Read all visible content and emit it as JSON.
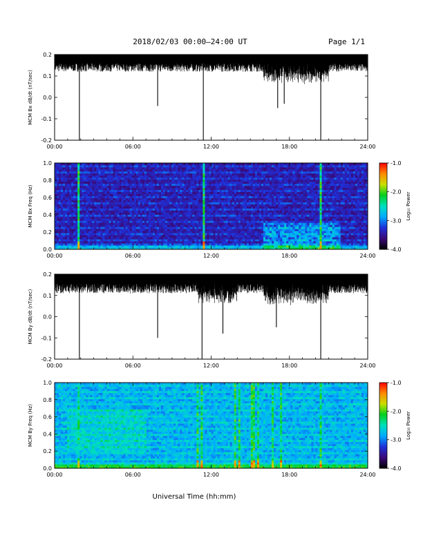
{
  "header": {
    "title": "2018/02/03  00:00–24:00 UT",
    "page": "Page 1/1"
  },
  "footer": {
    "xlabel": "Universal Time (hh:mm)"
  },
  "colors": {
    "trace": "#000000",
    "colorbar_stops": [
      "#000000",
      "#3a0a78",
      "#1f2fd8",
      "#00aaff",
      "#00e0c0",
      "#00d020",
      "#c8e000",
      "#ff8a00",
      "#ff0000"
    ]
  },
  "chart_data": [
    {
      "type": "line",
      "ylabel": "MCM Bx dB/dt (nT/sec)",
      "xlim": [
        0,
        24
      ],
      "ylim": [
        -0.2,
        0.2
      ],
      "xticks": [
        "00:00",
        "06:00",
        "12:00",
        "18:00",
        "24:00"
      ],
      "yticks": [
        "-0.2",
        "-0.1",
        "0.0",
        "0.1",
        "0.2"
      ],
      "baseline_range": [
        0.12,
        0.2
      ],
      "spikes": [
        {
          "x": 1.9,
          "y": -0.2
        },
        {
          "x": 7.9,
          "y": -0.04
        },
        {
          "x": 11.4,
          "y": -0.2
        },
        {
          "x": 17.1,
          "y": -0.05
        },
        {
          "x": 17.6,
          "y": -0.03
        },
        {
          "x": 20.4,
          "y": -0.2
        }
      ]
    },
    {
      "type": "heatmap",
      "ylabel": "MCM Bx Freq (Hz)",
      "colorbar_label": "Log₁₀ Power",
      "xlim": [
        0,
        24
      ],
      "ylim": [
        0.0,
        1.0
      ],
      "zlim": [
        -4.0,
        -1.0
      ],
      "xticks": [
        "00:00",
        "06:00",
        "12:00",
        "18:00",
        "24:00"
      ],
      "yticks": [
        "0.0",
        "0.2",
        "0.4",
        "0.6",
        "0.8",
        "1.0"
      ],
      "cbticks": [
        "-1.0",
        "-2.0",
        "-3.0",
        "-4.0"
      ],
      "bright_columns": [
        1.9,
        11.4,
        20.4
      ]
    },
    {
      "type": "line",
      "ylabel": "MCM By dB/dt (nT/sec)",
      "xlim": [
        0,
        24
      ],
      "ylim": [
        -0.2,
        0.2
      ],
      "xticks": [
        "00:00",
        "06:00",
        "12:00",
        "18:00",
        "24:00"
      ],
      "yticks": [
        "-0.2",
        "-0.1",
        "0.0",
        "0.1",
        "0.2"
      ],
      "baseline_range": [
        0.11,
        0.2
      ],
      "spikes": [
        {
          "x": 1.9,
          "y": -0.2
        },
        {
          "x": 7.9,
          "y": -0.1
        },
        {
          "x": 11.3,
          "y": -0.2
        },
        {
          "x": 12.9,
          "y": -0.08
        },
        {
          "x": 17.0,
          "y": -0.05
        },
        {
          "x": 20.4,
          "y": -0.2
        }
      ]
    },
    {
      "type": "heatmap",
      "ylabel": "MCM By Freq (Hz)",
      "colorbar_label": "Log₁₀ Power",
      "xlim": [
        0,
        24
      ],
      "ylim": [
        0.0,
        1.0
      ],
      "zlim": [
        -4.0,
        -1.0
      ],
      "xticks": [
        "00:00",
        "06:00",
        "12:00",
        "18:00",
        "24:00"
      ],
      "yticks": [
        "0.0",
        "0.2",
        "0.4",
        "0.6",
        "0.8",
        "1.0"
      ],
      "cbticks": [
        "-1.0",
        "-2.0",
        "-3.0",
        "-4.0"
      ],
      "bright_columns": [
        1.9,
        11.0,
        11.3,
        13.8,
        14.1,
        15.2,
        15.6,
        16.7,
        17.3,
        20.4
      ]
    }
  ]
}
